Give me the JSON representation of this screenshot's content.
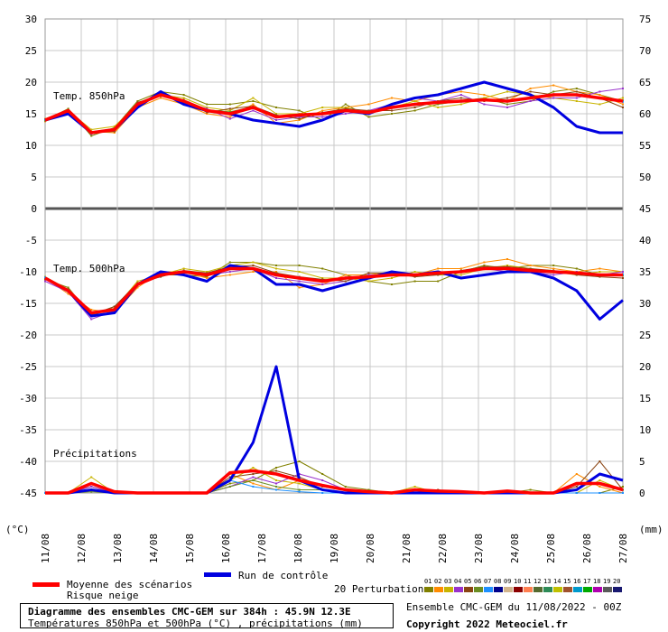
{
  "chart_data": {
    "type": "line",
    "title": "Diagramme des ensembles CMC-GEM sur 384h : 45.9N 12.3E",
    "subtitle": "Températures 850hPa et 500hPa (°C) , précipitations (mm)",
    "run_info": "Ensemble CMC-GEM du 11/08/2022 - 00Z",
    "copyright": "Copyright 2022 Meteociel.fr",
    "left_unit": "(°C)",
    "right_unit": "(mm)",
    "x_labels": [
      "11/08",
      "12/08",
      "13/08",
      "14/08",
      "15/08",
      "16/08",
      "17/08",
      "18/08",
      "19/08",
      "20/08",
      "21/08",
      "22/08",
      "23/08",
      "24/08",
      "25/08",
      "26/08",
      "27/08"
    ],
    "left_ticks": [
      30,
      25,
      20,
      15,
      10,
      5,
      0,
      -5,
      -10,
      -15,
      -20,
      -25,
      -30,
      -35,
      -40,
      -45
    ],
    "right_ticks": [
      75,
      70,
      65,
      60,
      55,
      50,
      45,
      40,
      35,
      30,
      25,
      20,
      15,
      10,
      5,
      0
    ],
    "left_range": [
      -45,
      30
    ],
    "right_range": [
      0,
      75
    ],
    "grid": true,
    "panels": [
      {
        "label": "Temp. 850hPa"
      },
      {
        "label": "Temp. 500hPa"
      },
      {
        "label": "Précipitations"
      }
    ],
    "legend": {
      "mean": "Moyenne des scénarios",
      "snow": "Risque neige",
      "control": "Run de contrôle",
      "perturbations": "20 Perturbations",
      "perturbation_numbers": [
        "01",
        "02",
        "03",
        "04",
        "05",
        "06",
        "07",
        "08",
        "09",
        "10",
        "11",
        "12",
        "13",
        "14",
        "15",
        "16",
        "17",
        "18",
        "19",
        "20"
      ]
    },
    "colors": {
      "mean": "#ff0000",
      "control": "#0000e0",
      "perturbations": [
        "#808000",
        "#ff8c00",
        "#c8b400",
        "#9932cc",
        "#8b4513",
        "#6b8e23",
        "#1e90ff",
        "#00008b",
        "#d2b48c",
        "#8b0000",
        "#ff7f50",
        "#556b2f",
        "#2e8b57",
        "#c0c000",
        "#a0522d",
        "#0099cc",
        "#00aa00",
        "#b000b0",
        "#5a5a5a",
        "#191970"
      ]
    },
    "series": [
      {
        "name": "Moyenne des scénarios",
        "t850": [
          14.0,
          15.5,
          12.0,
          12.5,
          16.5,
          18.0,
          17.0,
          15.5,
          15.0,
          16.0,
          14.5,
          14.8,
          15.0,
          15.5,
          15.2,
          16.0,
          16.5,
          16.8,
          17.0,
          17.2,
          17.0,
          17.5,
          18.0,
          18.0,
          17.5,
          17.0
        ],
        "t500": [
          -11.0,
          -13.0,
          -16.5,
          -16.0,
          -12.0,
          -10.5,
          -10.0,
          -10.5,
          -9.5,
          -9.5,
          -10.5,
          -11.0,
          -11.5,
          -11.0,
          -10.8,
          -10.5,
          -10.5,
          -10.2,
          -10.0,
          -9.5,
          -9.5,
          -9.8,
          -10.0,
          -10.2,
          -10.5,
          -10.5
        ],
        "precip": [
          0,
          0,
          1.5,
          0.2,
          0,
          0,
          0,
          0,
          3.2,
          3.5,
          3.0,
          2.0,
          1.2,
          0.5,
          0.2,
          0,
          0.5,
          0.3,
          0.2,
          0,
          0.3,
          0,
          0,
          1.5,
          1.5,
          0.5
        ]
      },
      {
        "name": "Run de contrôle",
        "t850": [
          14.0,
          15.0,
          12.0,
          12.5,
          16.0,
          18.5,
          16.5,
          15.5,
          15.0,
          14.0,
          13.5,
          13.0,
          14.0,
          15.5,
          15.0,
          16.5,
          17.5,
          18.0,
          19.0,
          20.0,
          19.0,
          18.0,
          16.0,
          13.0,
          12.0,
          12.0
        ],
        "t500": [
          -11.0,
          -13.0,
          -17.0,
          -16.5,
          -12.0,
          -10.0,
          -10.5,
          -11.5,
          -9.0,
          -9.5,
          -12.0,
          -12.0,
          -13.0,
          -12.0,
          -11.0,
          -10.0,
          -10.5,
          -10.0,
          -11.0,
          -10.5,
          -10.0,
          -10.0,
          -11.0,
          -13.0,
          -17.5,
          -14.5
        ],
        "precip": [
          0,
          0,
          0.5,
          0,
          0,
          0,
          0,
          0,
          2,
          8,
          20,
          2,
          0.5,
          0,
          0,
          0,
          0,
          0,
          0,
          0,
          0,
          0,
          0,
          0.5,
          3,
          2
        ]
      },
      {
        "name": "01",
        "t850": [
          14.0,
          15.8,
          11.5,
          12.8,
          17.0,
          18.5,
          18.0,
          16.5,
          16.5,
          17.0,
          16.0,
          15.5,
          14.0,
          16.5,
          14.5,
          15.0,
          15.5,
          16.5,
          17.0,
          17.5,
          16.5,
          17.0,
          18.5,
          19.0,
          18.0,
          17.0
        ],
        "t500": [
          -11.2,
          -12.5,
          -17.0,
          -15.5,
          -12.0,
          -10.5,
          -10.5,
          -10.8,
          -8.5,
          -8.5,
          -9.0,
          -9.0,
          -9.5,
          -10.5,
          -11.5,
          -12.0,
          -11.5,
          -11.5,
          -10.0,
          -9.0,
          -9.5,
          -9.0,
          -9.0,
          -9.5,
          -10.5,
          -10.5
        ],
        "precip": [
          0,
          0,
          1.0,
          0,
          0,
          0,
          0,
          0,
          1.5,
          2.0,
          4.0,
          5.0,
          3.0,
          1.0,
          0.5,
          0,
          0,
          0,
          0,
          0,
          0,
          0.5,
          0,
          0,
          0,
          1.0
        ]
      },
      {
        "name": "02",
        "t850": [
          13.8,
          15.2,
          12.2,
          12.0,
          16.0,
          17.5,
          16.5,
          15.0,
          14.5,
          16.5,
          13.5,
          14.0,
          15.5,
          16.0,
          16.5,
          17.5,
          17.0,
          18.0,
          18.5,
          18.0,
          17.0,
          19.0,
          19.5,
          18.5,
          18.0,
          16.5
        ],
        "t500": [
          -11.0,
          -13.5,
          -16.0,
          -16.5,
          -12.5,
          -10.0,
          -10.0,
          -11.0,
          -10.5,
          -10.0,
          -10.0,
          -12.5,
          -12.0,
          -10.5,
          -10.5,
          -10.0,
          -10.5,
          -9.5,
          -9.5,
          -8.5,
          -8.0,
          -9.0,
          -9.5,
          -10.0,
          -9.5,
          -10.0
        ],
        "precip": [
          0,
          0,
          0.5,
          0,
          0,
          0,
          0,
          0,
          3,
          1.5,
          0.5,
          2.0,
          1.0,
          0.5,
          0,
          0,
          0.5,
          0,
          0,
          0,
          0,
          0,
          0,
          3.0,
          1.0,
          0
        ]
      },
      {
        "name": "03",
        "t850": [
          14.2,
          15.5,
          12.5,
          13.0,
          16.5,
          18.0,
          17.5,
          16.0,
          15.5,
          17.5,
          15.0,
          15.0,
          16.0,
          16.0,
          15.0,
          16.0,
          17.0,
          16.0,
          16.5,
          17.5,
          18.5,
          18.0,
          17.5,
          17.0,
          16.5,
          17.5
        ],
        "t500": [
          -10.8,
          -12.8,
          -16.5,
          -15.8,
          -11.5,
          -10.5,
          -9.5,
          -10.0,
          -9.0,
          -8.5,
          -9.5,
          -10.0,
          -11.0,
          -11.0,
          -11.5,
          -11.0,
          -10.0,
          -10.5,
          -10.5,
          -9.5,
          -9.0,
          -9.5,
          -10.0,
          -10.5,
          -10.0,
          -10.0
        ],
        "precip": [
          0,
          0,
          2.5,
          0,
          0,
          0,
          0,
          0,
          2.0,
          4.0,
          2.0,
          1.5,
          0.5,
          0,
          0,
          0,
          1.0,
          0,
          0,
          0,
          0,
          0,
          0,
          0,
          2.0,
          0.5
        ]
      },
      {
        "name": "04",
        "t850": [
          14.0,
          15.0,
          11.8,
          12.5,
          16.2,
          18.2,
          16.8,
          15.8,
          14.2,
          15.5,
          14.0,
          14.5,
          14.5,
          15.0,
          15.5,
          16.5,
          17.5,
          17.0,
          18.0,
          16.5,
          16.0,
          17.0,
          17.5,
          17.5,
          18.5,
          19.0
        ],
        "t500": [
          -11.5,
          -13.2,
          -17.5,
          -16.2,
          -12.2,
          -10.2,
          -10.2,
          -10.5,
          -10.0,
          -9.5,
          -11.0,
          -11.5,
          -12.0,
          -11.5,
          -10.5,
          -10.5,
          -10.5,
          -10.0,
          -10.0,
          -9.5,
          -10.0,
          -10.0,
          -10.5,
          -10.0,
          -10.5,
          -10.0
        ],
        "precip": [
          0,
          0,
          1.0,
          0,
          0,
          0,
          0,
          0,
          1.0,
          2.5,
          1.5,
          3.0,
          2.0,
          0.5,
          0,
          0,
          0,
          0,
          0,
          0,
          0,
          0,
          0,
          0,
          0,
          0
        ]
      },
      {
        "name": "05",
        "t850": [
          14.0,
          15.5,
          12.0,
          12.2,
          16.8,
          17.8,
          17.2,
          15.2,
          15.8,
          16.2,
          14.8,
          14.2,
          15.2,
          15.8,
          15.5,
          15.5,
          16.0,
          17.0,
          17.5,
          17.0,
          17.5,
          18.5,
          18.0,
          18.5,
          17.5,
          16.0
        ],
        "t500": [
          -11.0,
          -12.8,
          -16.8,
          -15.5,
          -11.8,
          -10.8,
          -9.8,
          -10.2,
          -9.2,
          -9.0,
          -10.2,
          -10.8,
          -11.2,
          -11.5,
          -10.2,
          -10.2,
          -10.8,
          -10.5,
          -9.8,
          -9.2,
          -9.2,
          -9.5,
          -9.8,
          -10.5,
          -10.8,
          -11.0
        ],
        "precip": [
          0,
          0,
          1.5,
          0,
          0,
          0,
          0,
          0,
          2.5,
          3.0,
          3.5,
          2.5,
          1.0,
          0.5,
          0,
          0,
          0.5,
          0.5,
          0,
          0,
          0,
          0,
          0,
          1.0,
          5.0,
          0.5
        ]
      },
      {
        "name": "06",
        "t850": [
          13.9,
          15.6,
          12.1,
          12.6,
          16.6,
          17.9,
          16.9,
          15.6,
          15.3,
          16.1,
          14.6,
          14.9,
          15.1,
          15.6,
          15.1,
          15.9,
          16.6,
          16.9,
          17.1,
          17.3,
          16.9,
          17.6,
          18.1,
          18.1,
          17.6,
          17.1
        ],
        "t500": [
          -11.1,
          -13.1,
          -16.6,
          -16.1,
          -12.1,
          -10.6,
          -10.1,
          -10.6,
          -9.6,
          -9.6,
          -10.6,
          -11.1,
          -11.6,
          -11.1,
          -10.9,
          -10.6,
          -10.6,
          -10.3,
          -10.1,
          -9.6,
          -9.6,
          -9.9,
          -10.1,
          -10.3,
          -10.6,
          -10.6
        ],
        "precip": [
          0,
          0,
          0.2,
          0,
          0,
          0,
          0,
          0,
          1.0,
          2.0,
          1.0,
          0.5,
          0.5,
          0,
          0,
          0,
          0,
          0,
          0,
          0,
          0,
          0,
          0,
          0,
          0,
          0
        ]
      },
      {
        "name": "07",
        "t850": [
          14.1,
          15.4,
          11.9,
          12.4,
          16.4,
          18.1,
          17.1,
          15.4,
          14.9,
          15.9,
          14.4,
          14.7,
          14.9,
          15.4,
          15.3,
          16.1,
          16.4,
          16.7,
          16.9,
          17.1,
          17.1,
          17.4,
          17.9,
          17.9,
          17.4,
          16.9
        ],
        "t500": [
          -10.9,
          -12.9,
          -16.4,
          -15.9,
          -11.9,
          -10.4,
          -9.9,
          -10.4,
          -9.4,
          -9.4,
          -10.4,
          -10.9,
          -11.4,
          -10.9,
          -10.7,
          -10.4,
          -10.4,
          -10.1,
          -9.9,
          -9.4,
          -9.4,
          -9.7,
          -9.9,
          -10.1,
          -10.4,
          -10.4
        ],
        "precip": [
          0,
          0,
          0.5,
          0,
          0,
          0,
          0,
          0,
          2.0,
          1.0,
          0.5,
          0.2,
          0,
          0,
          0,
          0,
          0,
          0,
          0,
          0,
          0,
          0,
          0,
          0,
          0,
          0
        ]
      }
    ]
  }
}
